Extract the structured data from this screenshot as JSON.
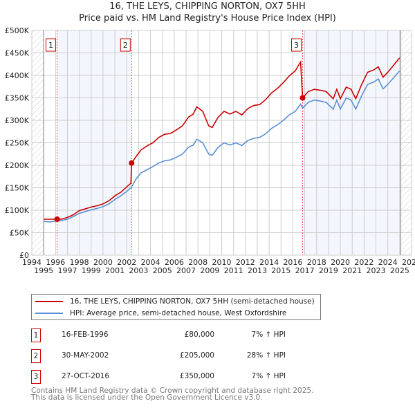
{
  "chart_data": {
    "type": "line",
    "title": "16, THE LEYS, CHIPPING NORTON, OX7 5HH",
    "subtitle": "Price paid vs. HM Land Registry's House Price Index (HPI)",
    "xlim": [
      1994,
      2026
    ],
    "ylim": [
      0,
      500000
    ],
    "yticks": [
      {
        "v": 0,
        "label": "£0"
      },
      {
        "v": 50000,
        "label": "£50K"
      },
      {
        "v": 100000,
        "label": "£100K"
      },
      {
        "v": 150000,
        "label": "£150K"
      },
      {
        "v": 200000,
        "label": "£200K"
      },
      {
        "v": 250000,
        "label": "£250K"
      },
      {
        "v": 300000,
        "label": "£300K"
      },
      {
        "v": 350000,
        "label": "£350K"
      },
      {
        "v": 400000,
        "label": "£400K"
      },
      {
        "v": 450000,
        "label": "£450K"
      },
      {
        "v": 500000,
        "label": "£500K"
      }
    ],
    "xticks": [
      "1994",
      "1995",
      "1996",
      "1997",
      "1998",
      "1999",
      "2000",
      "2001",
      "2002",
      "2003",
      "2004",
      "2005",
      "2006",
      "2007",
      "2008",
      "2009",
      "2010",
      "2011",
      "2012",
      "2013",
      "2014",
      "2015",
      "2016",
      "2017",
      "2018",
      "2019",
      "2020",
      "2021",
      "2022",
      "2023",
      "2024",
      "2025",
      "2026"
    ],
    "grid": true,
    "x": [
      1995.0,
      1995.5,
      1996.1,
      1996.5,
      1997.0,
      1997.5,
      1998.0,
      1998.5,
      1999.0,
      1999.5,
      2000.0,
      2000.5,
      2001.0,
      2001.5,
      2002.0,
      2002.35,
      2002.41,
      2002.8,
      2003.2,
      2003.7,
      2004.2,
      2004.7,
      2005.2,
      2005.7,
      2006.2,
      2006.7,
      2007.2,
      2007.6,
      2007.9,
      2008.4,
      2008.9,
      2009.2,
      2009.7,
      2010.2,
      2010.7,
      2011.2,
      2011.7,
      2012.2,
      2012.7,
      2013.2,
      2013.7,
      2014.2,
      2014.7,
      2015.2,
      2015.7,
      2016.2,
      2016.65,
      2016.82,
      2017.3,
      2017.8,
      2018.3,
      2018.8,
      2019.4,
      2019.7,
      2020.0,
      2020.5,
      2020.9,
      2021.3,
      2021.8,
      2022.3,
      2022.8,
      2023.2,
      2023.6,
      2024.0,
      2024.5,
      2025.0
    ],
    "series": [
      {
        "name": "16, THE LEYS, CHIPPING NORTON, OX7 5HH (semi-detached house)",
        "color": "#cc0000",
        "values": [
          80000,
          80000,
          80000,
          80000,
          84000,
          90000,
          99000,
          103000,
          107000,
          110000,
          114000,
          121000,
          132000,
          140000,
          152000,
          160000,
          205000,
          220000,
          234000,
          243000,
          250000,
          262000,
          269000,
          271000,
          279000,
          288000,
          307000,
          314000,
          330000,
          320000,
          288000,
          284000,
          307000,
          320000,
          314000,
          320000,
          312000,
          326000,
          333000,
          335000,
          346000,
          361000,
          371000,
          384000,
          399000,
          410000,
          430000,
          350000,
          364000,
          369000,
          367000,
          364000,
          348000,
          369000,
          348000,
          374000,
          369000,
          348000,
          380000,
          407000,
          412000,
          419000,
          396000,
          407000,
          423000,
          439000
        ]
      },
      {
        "name": "HPI: Average price, semi-detached house, West Oxfordshire",
        "color": "#5b8fd4",
        "values": [
          75000,
          74000,
          76000,
          77000,
          80000,
          86000,
          93000,
          97000,
          101000,
          104000,
          108000,
          114000,
          124000,
          132000,
          142000,
          150000,
          152000,
          170000,
          183000,
          190000,
          197000,
          205000,
          210000,
          212000,
          218000,
          225000,
          240000,
          245000,
          258000,
          250000,
          225000,
          222000,
          240000,
          250000,
          245000,
          250000,
          244000,
          255000,
          260000,
          262000,
          270000,
          282000,
          290000,
          300000,
          312000,
          320000,
          336000,
          327000,
          340000,
          345000,
          343000,
          340000,
          325000,
          345000,
          325000,
          350000,
          345000,
          325000,
          355000,
          380000,
          385000,
          392000,
          370000,
          380000,
          395000,
          410000
        ]
      }
    ],
    "sales": [
      {
        "num": "1",
        "year": 1996.13,
        "value": 80000,
        "date": "16-FEB-1996",
        "price": "£80,000",
        "hpi": "7% ↑ HPI"
      },
      {
        "num": "2",
        "year": 2002.41,
        "value": 205000,
        "date": "30-MAY-2002",
        "price": "£205,000",
        "hpi": "28% ↑ HPI"
      },
      {
        "num": "3",
        "year": 2016.82,
        "value": 350000,
        "date": "27-OCT-2016",
        "price": "£350,000",
        "hpi": "7% ↑ HPI"
      }
    ],
    "legend_placement": "below"
  },
  "legend": {
    "red": "16, THE LEYS, CHIPPING NORTON, OX7 5HH (semi-detached house)",
    "blue": "HPI: Average price, semi-detached house, West Oxfordshire"
  },
  "footer": {
    "line1": "Contains HM Land Registry data © Crown copyright and database right 2025.",
    "line2": "This data is licensed under the Open Government Licence v3.0."
  }
}
